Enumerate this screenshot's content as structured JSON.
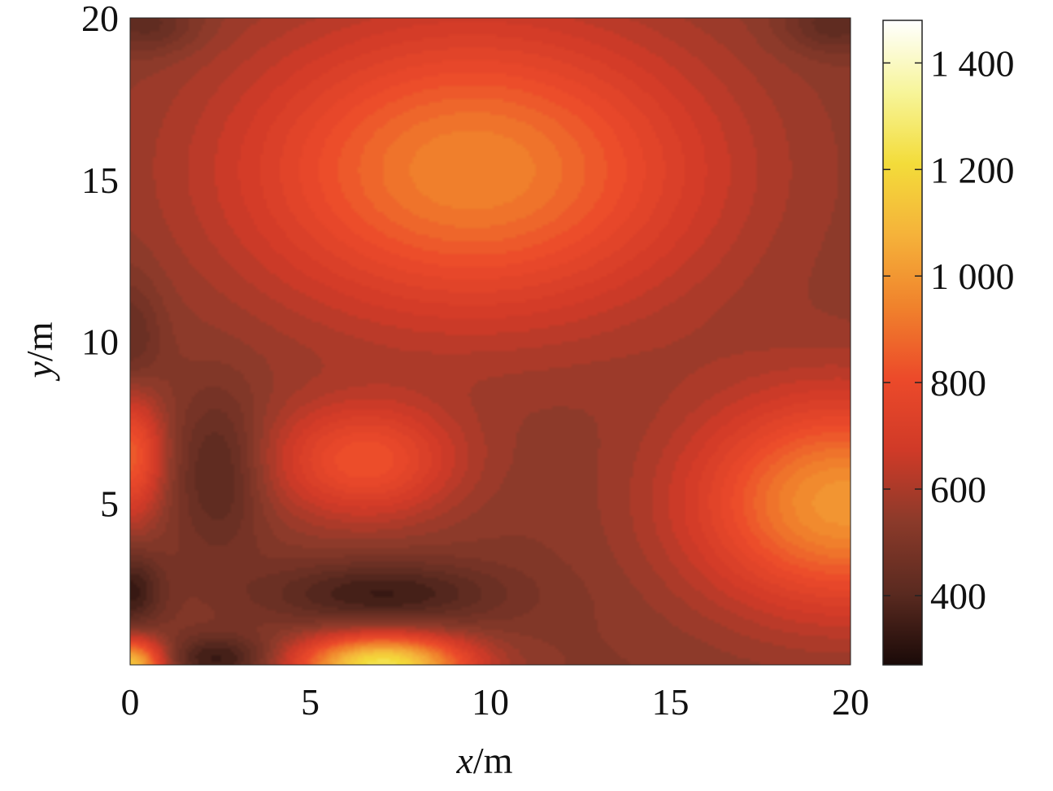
{
  "chart_data": {
    "type": "heatmap",
    "title": "",
    "xlabel": {
      "var": "x",
      "unit": "/m"
    },
    "ylabel": {
      "var": "y",
      "unit": "/m"
    },
    "xlim": [
      0,
      20
    ],
    "ylim": [
      0,
      20
    ],
    "x_ticks": [
      "0",
      "5",
      "10",
      "15",
      "20"
    ],
    "y_ticks": [
      "5",
      "10",
      "15",
      "20"
    ],
    "colorbar": {
      "range": [
        270,
        1480
      ],
      "ticks": [
        400,
        600,
        800,
        1000,
        1200,
        1400
      ],
      "tick_labels": [
        "400",
        "600",
        "800",
        "1 000",
        "1 200",
        "1 400"
      ],
      "colormap": [
        "#1a0a08",
        "#5a2a20",
        "#8b3a2a",
        "#d03a28",
        "#ec4a2a",
        "#f0822c",
        "#f5b23a",
        "#f3dc3a",
        "#f7f59a",
        "#ffffff"
      ]
    },
    "base_value": 520,
    "field_features": [
      {
        "kind": "peak",
        "x": 9.5,
        "y": 15.3,
        "value": 950,
        "sx": 6.5,
        "sy": 4.6
      },
      {
        "kind": "peak",
        "x": 6.5,
        "y": 6.3,
        "value": 820,
        "sx": 2.6,
        "sy": 1.8
      },
      {
        "kind": "peak",
        "x": 19.8,
        "y": 5.0,
        "value": 1000,
        "sx": 4.2,
        "sy": 3.3
      },
      {
        "kind": "peak",
        "x": 7.0,
        "y": 0.0,
        "value": 1250,
        "sx": 2.3,
        "sy": 0.9
      },
      {
        "kind": "peak",
        "x": 0.0,
        "y": 0.0,
        "value": 1150,
        "sx": 0.9,
        "sy": 0.8
      },
      {
        "kind": "peak",
        "x": 0.0,
        "y": 6.5,
        "value": 850,
        "sx": 0.9,
        "sy": 2.0
      },
      {
        "kind": "trough",
        "x": 7.0,
        "y": 2.2,
        "value": 340,
        "sx": 3.2,
        "sy": 1.0
      },
      {
        "kind": "trough",
        "x": 2.5,
        "y": 6.0,
        "value": 380,
        "sx": 1.2,
        "sy": 2.4
      },
      {
        "kind": "trough",
        "x": 0.0,
        "y": 2.3,
        "value": 330,
        "sx": 0.9,
        "sy": 1.2
      },
      {
        "kind": "trough",
        "x": 2.5,
        "y": 0.2,
        "value": 330,
        "sx": 1.5,
        "sy": 0.7
      },
      {
        "kind": "trough",
        "x": 0.5,
        "y": 19.8,
        "value": 400,
        "sx": 1.4,
        "sy": 0.9
      },
      {
        "kind": "trough",
        "x": 19.5,
        "y": 19.8,
        "value": 400,
        "sx": 1.4,
        "sy": 0.9
      },
      {
        "kind": "trough",
        "x": 0.0,
        "y": 10.0,
        "value": 410,
        "sx": 0.9,
        "sy": 2.0
      }
    ]
  }
}
